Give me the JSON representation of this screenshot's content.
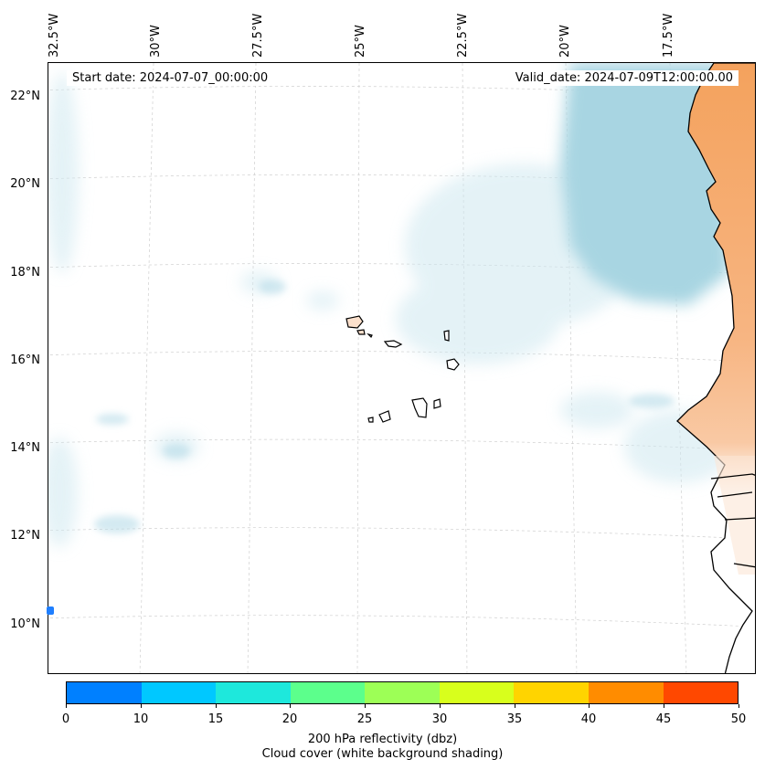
{
  "map": {
    "start_date": "Start date: 2024-07-07_00:00:00",
    "valid_date": "Valid_date: 2024-07-09T12:00:00.00",
    "longitude_labels": [
      "32.5°W",
      "30°W",
      "27.5°W",
      "25°W",
      "22.5°W",
      "20°W",
      "17.5°W"
    ],
    "latitude_labels": [
      "22°N",
      "20°N",
      "18°N",
      "16°N",
      "14°N",
      "12°N",
      "10°N"
    ],
    "colors": {
      "cloud_shade": "#b7dce8",
      "dense_cloud": "#a8d5e2",
      "land_high": "#f4a25d",
      "land_low": "#fbe0cc",
      "coastline": "#000000",
      "marker": "#1f7fff"
    }
  },
  "colorbar": {
    "ticks": [
      "0",
      "10",
      "15",
      "20",
      "25",
      "30",
      "35",
      "40",
      "45",
      "50"
    ],
    "colors": [
      "#0080ff",
      "#00c8ff",
      "#1ee8dc",
      "#5cff8c",
      "#9dff56",
      "#d8ff1c",
      "#ffd400",
      "#ff8c00",
      "#ff4800"
    ],
    "label_line1": "200 hPa reflectivity (dbz)",
    "label_line2": "Cloud cover (white background shading)"
  }
}
